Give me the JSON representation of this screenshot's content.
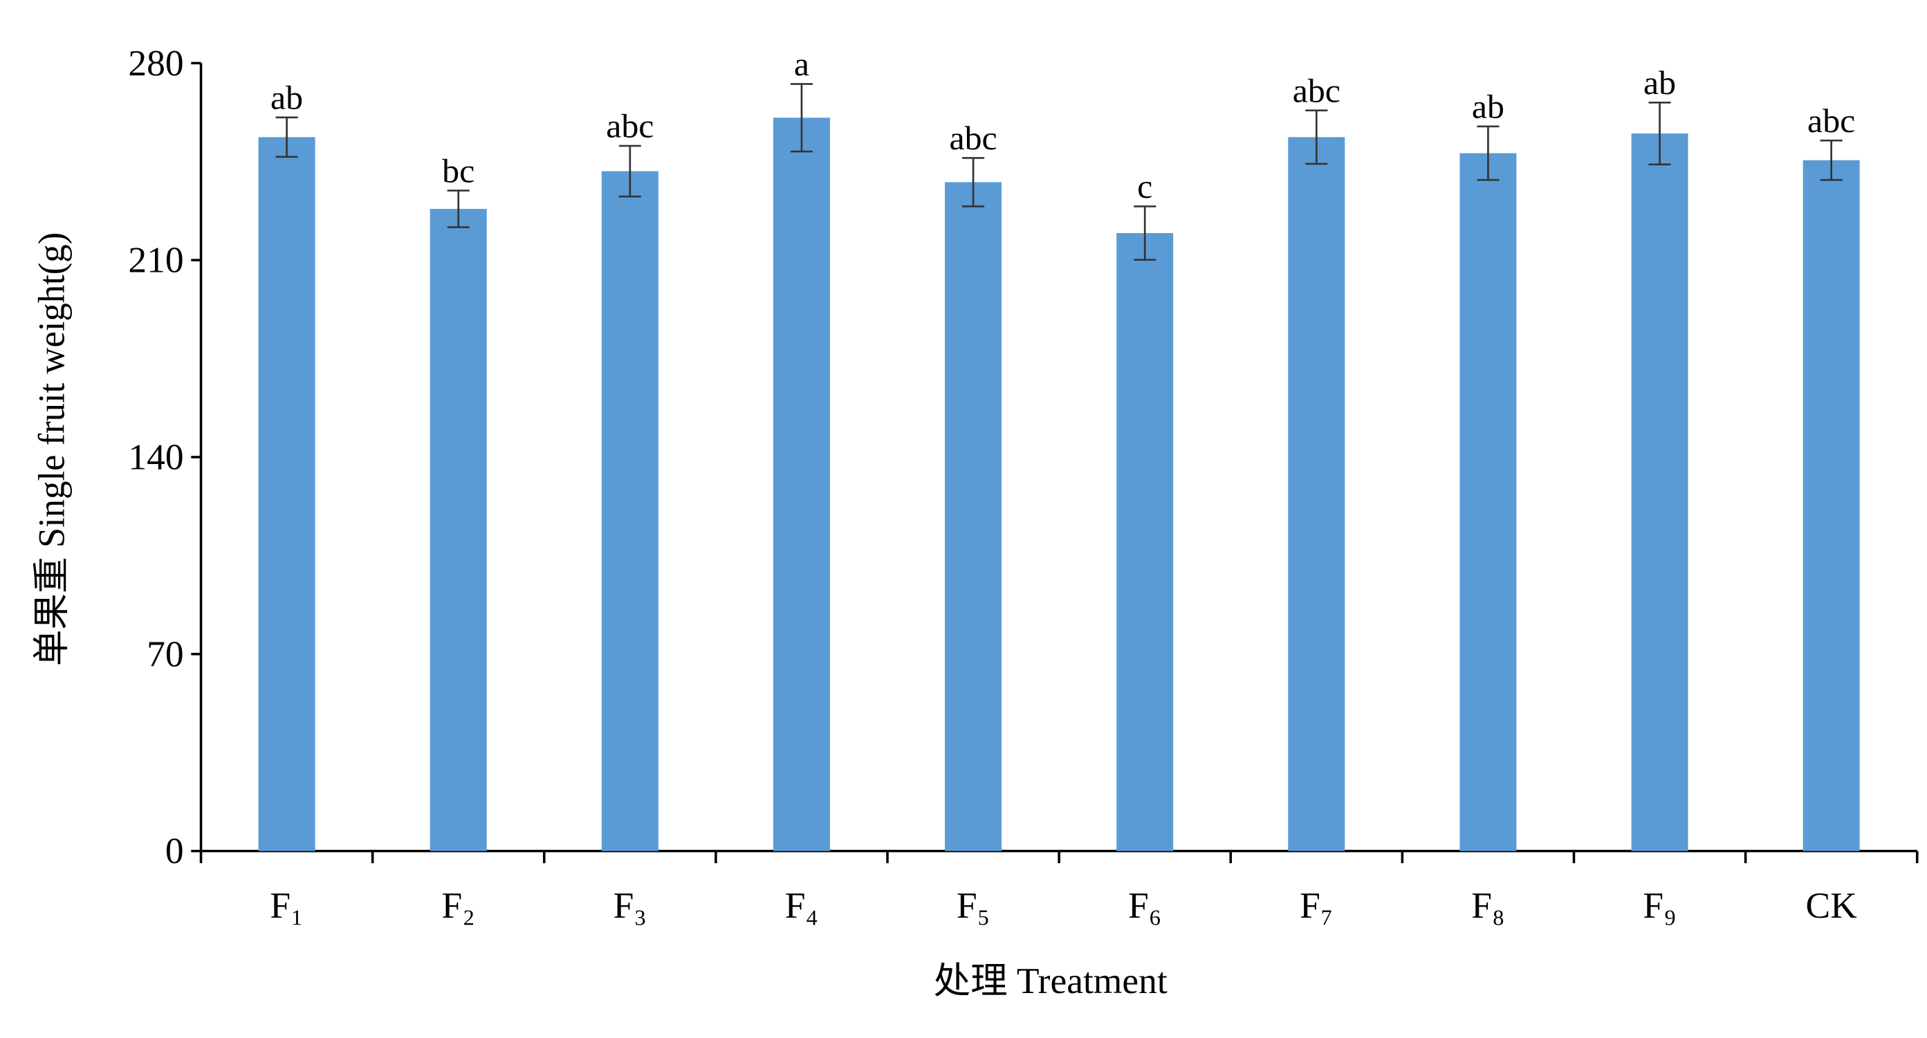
{
  "chart_data": {
    "type": "bar",
    "y_label": "单果重 Single fruit weight(g)",
    "x_label": "处理 Treatment",
    "categories": [
      "F₁",
      "F₂",
      "F₃",
      "F₄",
      "F₅",
      "F₆",
      "F₇",
      "F₈",
      "F₉",
      "CK"
    ],
    "values": [
      253.7,
      228.2,
      241.6,
      260.6,
      237.7,
      219.6,
      253.7,
      248,
      255,
      245.5
    ],
    "errors": [
      7,
      6.5,
      9,
      12,
      8.6,
      9.5,
      9.5,
      9.5,
      11,
      7
    ],
    "significance": [
      "ab",
      "bc",
      "abc",
      "a",
      "abc",
      "c",
      "abc",
      "ab",
      "ab",
      "abc"
    ],
    "color": "#5b9bd5",
    "ylim": [
      0,
      280
    ],
    "yticks": [
      0,
      70,
      140,
      210,
      280
    ],
    "grid": false
  }
}
